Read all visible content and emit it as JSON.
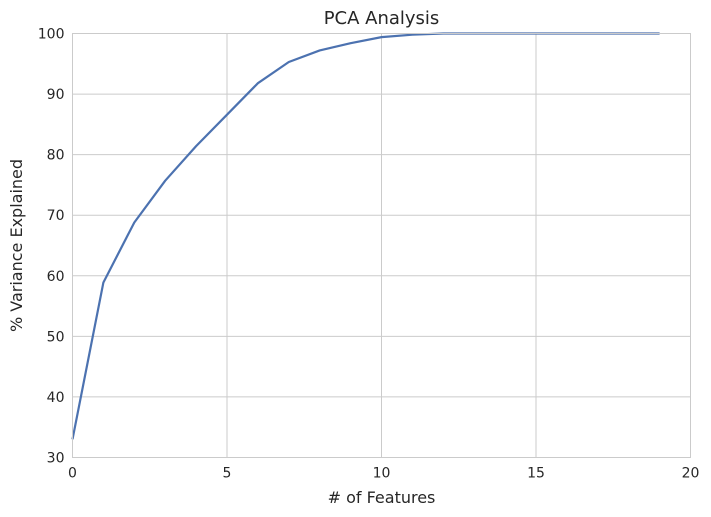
{
  "chart_data": {
    "type": "line",
    "title": "PCA Analysis",
    "xlabel": "# of Features",
    "ylabel": "% Variance Explained",
    "xlim": [
      0,
      20
    ],
    "ylim": [
      30,
      100
    ],
    "xticks": [
      "0",
      "5",
      "10",
      "15",
      "20"
    ],
    "yticks": [
      "30",
      "40",
      "50",
      "60",
      "70",
      "80",
      "90",
      "100"
    ],
    "grid": true,
    "colors": {
      "line": "#4c72b0",
      "grid": "#cbcbcb",
      "frame": "#cbcbcb",
      "text": "#262626"
    },
    "x": [
      0,
      1,
      2,
      3,
      4,
      5,
      6,
      7,
      8,
      9,
      10,
      11,
      12,
      13,
      14,
      15,
      16,
      17,
      18,
      19
    ],
    "series": [
      {
        "values": [
          33.0,
          58.9,
          68.8,
          75.7,
          81.4,
          86.6,
          91.8,
          95.3,
          97.2,
          98.4,
          99.4,
          99.8,
          100.0,
          100.0,
          100.0,
          100.0,
          100.0,
          100.0,
          100.0,
          100.0
        ]
      }
    ]
  }
}
